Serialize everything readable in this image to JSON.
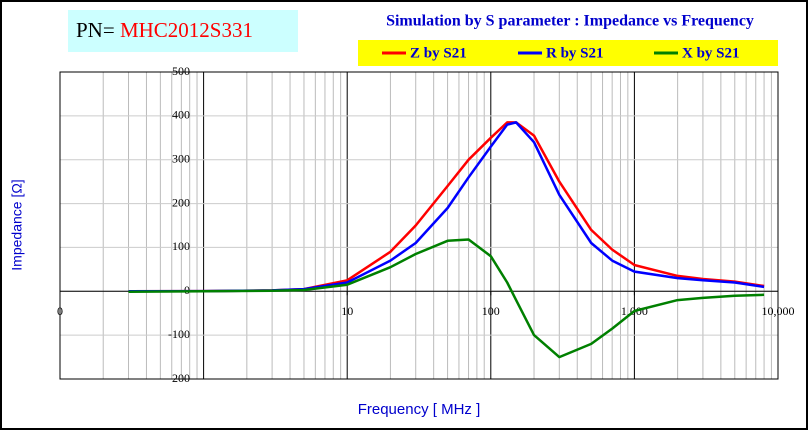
{
  "chart_data": {
    "type": "line",
    "title": "Simulation by S parameter : Impedance vs Frequency",
    "part_number_label": "PN=",
    "part_number": "MHC2012S331",
    "xlabel": "Frequency [ MHz ]",
    "ylabel": "Impedance [Ω]",
    "xscale": "log",
    "grid": true,
    "xlim": [
      0.1,
      10000
    ],
    "xticks": [
      {
        "value": 0.1,
        "label": "0"
      },
      10,
      100,
      {
        "value": 1000,
        "label": "1,000"
      },
      {
        "value": 10000,
        "label": "10,000"
      }
    ],
    "ylim": [
      -200,
      500
    ],
    "yticks": [
      -200,
      -100,
      0,
      100,
      200,
      300,
      400,
      500
    ],
    "x": [
      0.3,
      1,
      3,
      5,
      10,
      20,
      30,
      50,
      70,
      100,
      130,
      150,
      200,
      300,
      500,
      700,
      1000,
      2000,
      3000,
      5000,
      8000
    ],
    "series": [
      {
        "name": "Z by S21",
        "color": "#ff0000",
        "values": [
          0,
          0.5,
          2,
          5,
          25,
          90,
          150,
          240,
          300,
          350,
          385,
          385,
          355,
          250,
          140,
          95,
          60,
          35,
          28,
          22,
          12
        ]
      },
      {
        "name": "R by S21",
        "color": "#0000ff",
        "values": [
          0,
          0.5,
          2,
          5,
          20,
          70,
          110,
          190,
          260,
          330,
          380,
          385,
          340,
          220,
          110,
          70,
          45,
          30,
          25,
          20,
          10
        ]
      },
      {
        "name": "X by S21",
        "color": "#008000",
        "values": [
          -1,
          0,
          1,
          3,
          15,
          55,
          85,
          115,
          118,
          80,
          20,
          -20,
          -100,
          -150,
          -120,
          -85,
          -45,
          -20,
          -15,
          -10,
          -8
        ]
      }
    ]
  }
}
